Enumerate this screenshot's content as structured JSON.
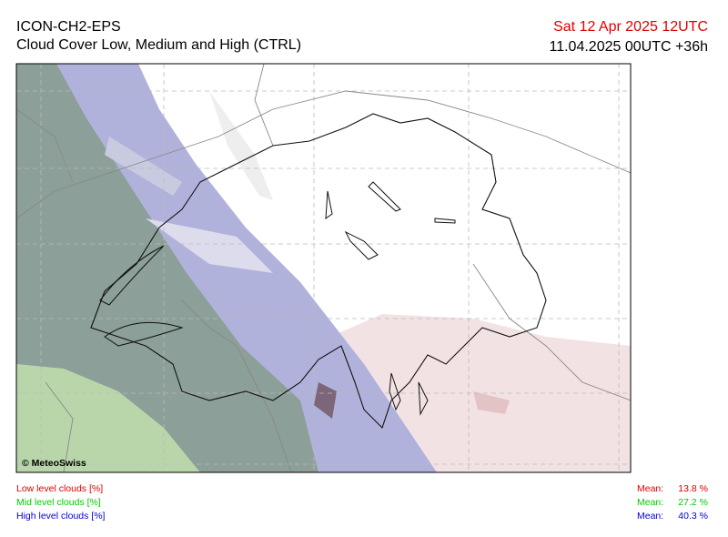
{
  "header": {
    "title": "ICON-CH2-EPS",
    "subtitle": "Cloud Cover Low, Medium and High (CTRL)",
    "valid_time": "Sat 12 Apr 2025 12UTC",
    "run_time": "11.04.2025 00UTC +36h"
  },
  "map": {
    "copyright": "© MeteoSwiss"
  },
  "legend": {
    "entries": [
      {
        "label": "Low level clouds [%]",
        "mean_label": "Mean:",
        "mean": "13.8 %"
      },
      {
        "label": "Mid level clouds [%]",
        "mean_label": "Mean:",
        "mean": "27.2 %"
      },
      {
        "label": "High level clouds [%]",
        "mean_label": "Mean:",
        "mean": "40.3 %"
      }
    ]
  }
}
